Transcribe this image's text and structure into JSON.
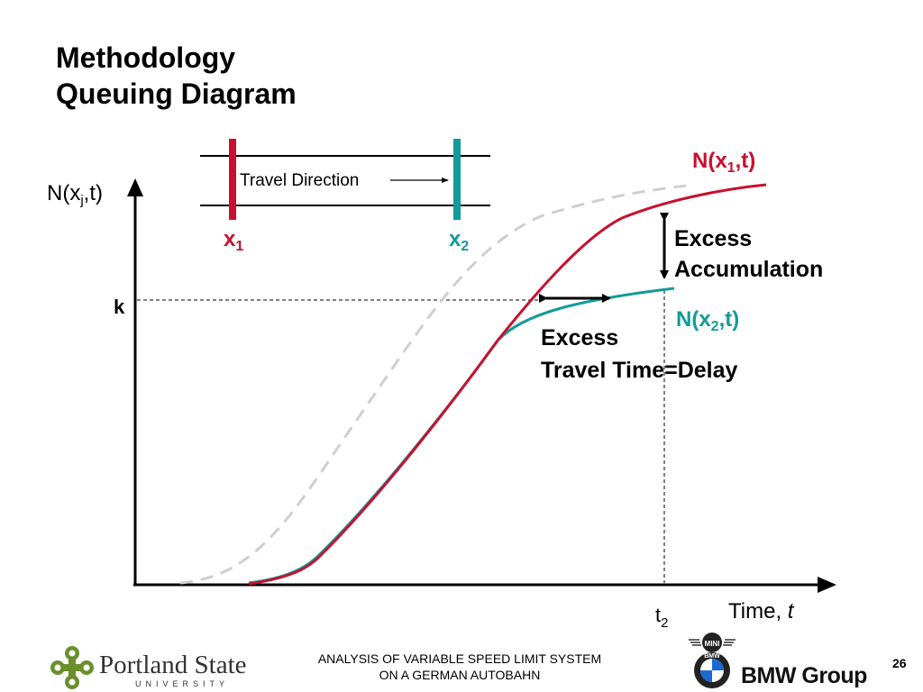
{
  "title": {
    "line1": "Methodology",
    "line2": "Queuing Diagram"
  },
  "inset": {
    "direction_label": "Travel Direction",
    "x1_label": "x",
    "x1_sub": "1",
    "x2_label": "x",
    "x2_sub": "2"
  },
  "axes": {
    "y_label_pre": "N(x",
    "y_label_sub": "j",
    "y_label_post": ",t)",
    "k_label": "k",
    "x_label": "Time, ",
    "x_label_var": "t",
    "t2_label": "t",
    "t2_sub": "2"
  },
  "curves": {
    "n1_pre": "N(x",
    "n1_sub": "1",
    "n1_post": ",t)",
    "n2_pre": "N(x",
    "n2_sub": "2",
    "n2_post": ",t)"
  },
  "annotations": {
    "excess_accum_line1": "Excess",
    "excess_accum_line2": "Accumulation",
    "excess_delay_line1": "Excess",
    "excess_delay_line2": "Travel Time=Delay"
  },
  "footer": {
    "line1": "ANALYSIS OF VARIABLE SPEED LIMIT SYSTEM",
    "line2": "ON A GERMAN AUTOBAHN",
    "page": "26"
  },
  "logos": {
    "psu_name": "Portland State",
    "psu_sub": "UNIVERSITY",
    "bmw_text": "BMW Group",
    "mini_text": "MINI",
    "bmw_letters": "BMW"
  },
  "colors": {
    "n1_red": "#c8102e",
    "n2_teal": "#139a9a",
    "dashed_gray": "#cfcfcf",
    "psu_green": "#6a8f2b"
  }
}
